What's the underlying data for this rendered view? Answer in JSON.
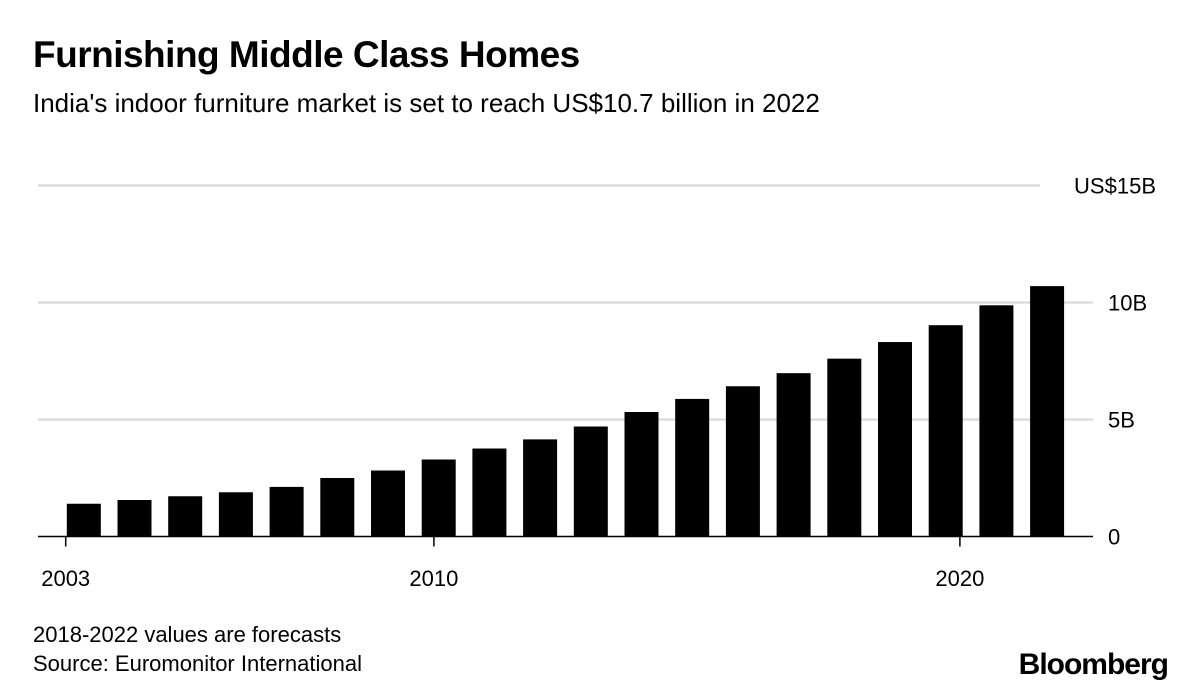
{
  "header": {
    "title": "Furnishing Middle Class Homes",
    "subtitle": "India's indoor furniture market is set to reach US$10.7 billion in 2022"
  },
  "chart_data": {
    "type": "bar",
    "title": "Furnishing Middle Class Homes",
    "subtitle": "India's indoor furniture market is set to reach US$10.7 billion in 2022",
    "categories": [
      2003,
      2004,
      2005,
      2006,
      2007,
      2008,
      2009,
      2010,
      2011,
      2012,
      2013,
      2014,
      2015,
      2016,
      2017,
      2018,
      2019,
      2020,
      2021,
      2022
    ],
    "values": [
      1.4,
      1.56,
      1.72,
      1.89,
      2.12,
      2.5,
      2.82,
      3.29,
      3.76,
      4.15,
      4.7,
      5.32,
      5.88,
      6.42,
      6.98,
      7.6,
      8.31,
      9.03,
      9.88,
      10.7
    ],
    "unit": "US$ billion",
    "ylim": [
      0,
      15
    ],
    "y_ticks": [
      {
        "value": 0,
        "label": "0"
      },
      {
        "value": 5,
        "label": "5B"
      },
      {
        "value": 10,
        "label": "10B"
      },
      {
        "value": 15,
        "label": "US$15B"
      }
    ],
    "x_ticks": [
      {
        "value": 2003,
        "label": "2003"
      },
      {
        "value": 2010,
        "label": "2010"
      },
      {
        "value": 2020,
        "label": "2020"
      }
    ],
    "y_axis_position": "right",
    "grid": true,
    "bar_color": "#000000",
    "grid_color": "#dddddd"
  },
  "footer": {
    "note": "2018-2022 values are forecasts",
    "source": "Source: Euromonitor International",
    "logo": "Bloomberg"
  }
}
